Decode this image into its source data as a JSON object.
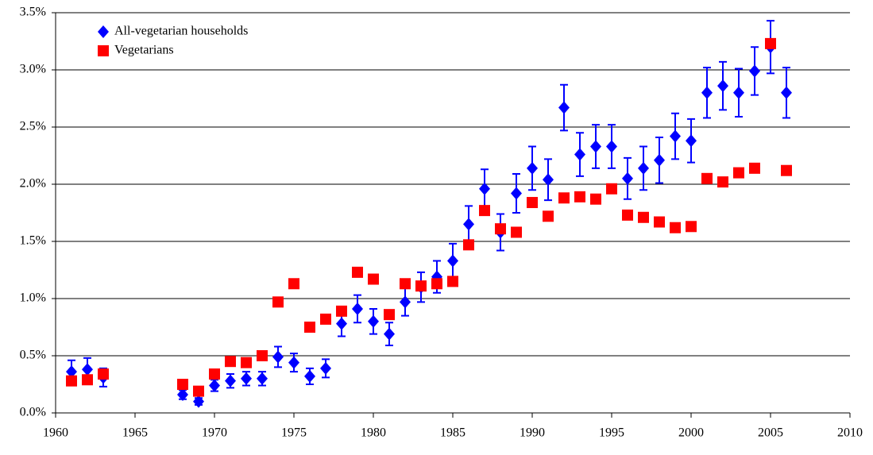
{
  "chart_data": {
    "type": "scatter",
    "grid": true,
    "legend": "upper left",
    "xlim": [
      1960,
      2010
    ],
    "xticks": [
      1960,
      1965,
      1970,
      1975,
      1980,
      1985,
      1990,
      1995,
      2000,
      2005,
      2010
    ],
    "ylim": [
      0,
      3.5
    ],
    "yticks": [
      {
        "value": 0,
        "label": "0.0%"
      },
      {
        "value": 0.5,
        "label": "0.5%"
      },
      {
        "value": 1,
        "label": "1.0%"
      },
      {
        "value": 1.5,
        "label": "1.5%"
      },
      {
        "value": 2,
        "label": "2.0%"
      },
      {
        "value": 2.5,
        "label": "2.5%"
      },
      {
        "value": 3,
        "label": "3.0%"
      },
      {
        "value": 3.5,
        "label": "3.5%"
      }
    ],
    "series": [
      {
        "name": "All-vegetarian households",
        "color": "#0000ff",
        "marker": "diamond",
        "x": [
          1961,
          1962,
          1963,
          1968,
          1969,
          1970,
          1971,
          1972,
          1973,
          1974,
          1975,
          1976,
          1977,
          1978,
          1979,
          1980,
          1981,
          1982,
          1983,
          1984,
          1985,
          1986,
          1987,
          1988,
          1989,
          1990,
          1991,
          1992,
          1993,
          1994,
          1995,
          1996,
          1997,
          1998,
          1999,
          2000,
          2001,
          2002,
          2003,
          2004,
          2005,
          2006
        ],
        "values": [
          0.36,
          0.38,
          0.31,
          0.16,
          0.1,
          0.24,
          0.28,
          0.3,
          0.3,
          0.49,
          0.44,
          0.32,
          0.39,
          0.78,
          0.91,
          0.8,
          0.69,
          0.97,
          1.1,
          1.19,
          1.33,
          1.65,
          1.96,
          1.58,
          1.92,
          2.14,
          2.04,
          2.67,
          2.26,
          2.33,
          2.33,
          2.05,
          2.14,
          2.21,
          2.42,
          2.38,
          2.8,
          2.86,
          2.8,
          2.99,
          3.2,
          2.8
        ],
        "errors": [
          0.1,
          0.1,
          0.08,
          0.04,
          0.03,
          0.05,
          0.06,
          0.06,
          0.06,
          0.09,
          0.08,
          0.07,
          0.08,
          0.11,
          0.12,
          0.11,
          0.1,
          0.12,
          0.13,
          0.14,
          0.15,
          0.16,
          0.17,
          0.16,
          0.17,
          0.19,
          0.18,
          0.2,
          0.19,
          0.19,
          0.19,
          0.18,
          0.19,
          0.2,
          0.2,
          0.19,
          0.22,
          0.21,
          0.21,
          0.21,
          0.23,
          0.22
        ]
      },
      {
        "name": "Vegetarians",
        "color": "#ff0000",
        "marker": "square",
        "x": [
          1961,
          1962,
          1963,
          1968,
          1969,
          1970,
          1971,
          1972,
          1973,
          1974,
          1975,
          1976,
          1977,
          1978,
          1979,
          1980,
          1981,
          1982,
          1983,
          1984,
          1985,
          1986,
          1987,
          1988,
          1989,
          1990,
          1991,
          1992,
          1993,
          1994,
          1995,
          1996,
          1997,
          1998,
          1999,
          2000,
          2001,
          2002,
          2003,
          2004,
          2005,
          2006
        ],
        "values": [
          0.28,
          0.29,
          0.34,
          0.25,
          0.19,
          0.34,
          0.45,
          0.44,
          0.5,
          0.97,
          1.13,
          0.75,
          0.82,
          0.89,
          1.23,
          1.17,
          0.86,
          1.13,
          1.11,
          1.13,
          1.15,
          1.47,
          1.77,
          1.61,
          1.58,
          1.84,
          1.72,
          1.88,
          1.89,
          1.87,
          1.96,
          1.73,
          1.71,
          1.67,
          1.62,
          1.63,
          2.05,
          2.02,
          2.1,
          2.14,
          3.23,
          2.12
        ]
      }
    ]
  }
}
